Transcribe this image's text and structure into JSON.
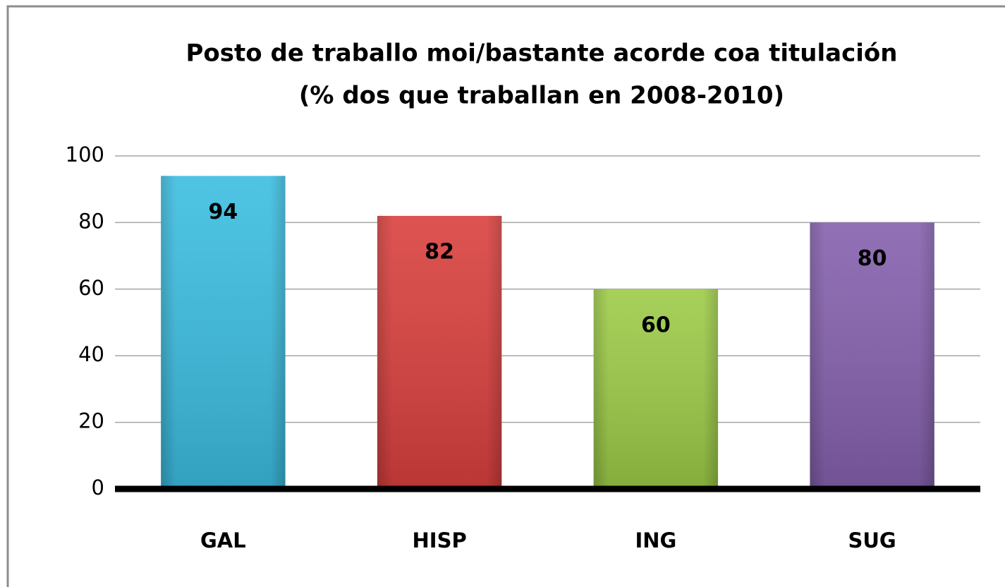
{
  "chart_data": {
    "type": "bar",
    "title": "Posto de traballo moi/bastante acorde coa titulación",
    "subtitle": "(% dos que traballan en 2008-2010)",
    "categories": [
      "GAL",
      "HISP",
      "ING",
      "SUG"
    ],
    "values": [
      94,
      82,
      60,
      80
    ],
    "colors": [
      "#3bbde0",
      "#d9403e",
      "#9ccb47",
      "#8560ad"
    ],
    "ylim": [
      0,
      100
    ],
    "yticks": [
      0,
      20,
      40,
      60,
      80,
      100
    ],
    "grid": true
  }
}
